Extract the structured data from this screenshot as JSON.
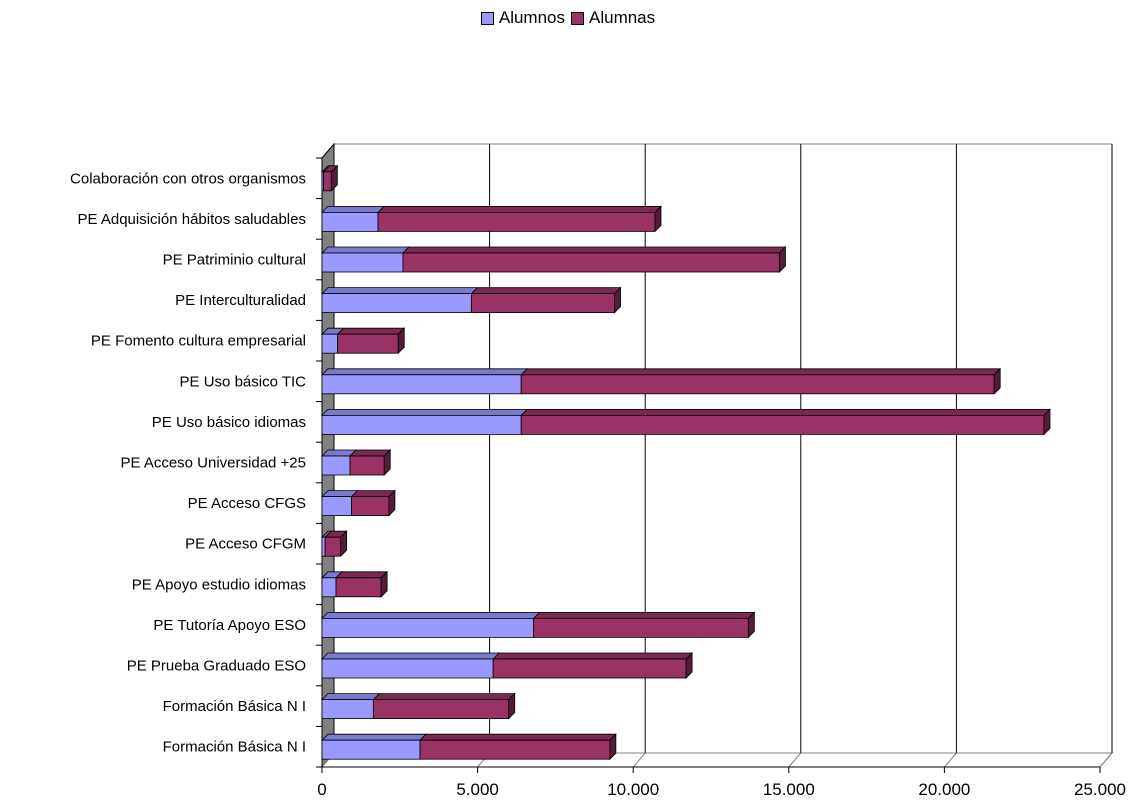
{
  "chart_data": {
    "type": "bar",
    "orientation": "horizontal",
    "stacked": true,
    "three_d": true,
    "legend_position": "top",
    "grid": true,
    "xlim": [
      0,
      25000
    ],
    "x_ticks": [
      "0",
      "5.000",
      "10.000",
      "15.000",
      "20.000",
      "25.000"
    ],
    "x_tick_values": [
      0,
      5000,
      10000,
      15000,
      20000,
      25000
    ],
    "categories": [
      "Colaboración con otros organismos",
      "PE Adquisición hábitos saludables",
      "PE Patriminio cultural",
      "PE Interculturalidad",
      "PE Fomento cultura empresarial",
      "PE Uso básico TIC",
      "PE Uso básico idiomas",
      "PE Acceso Universidad +25",
      "PE Acceso CFGS",
      "PE Acceso CFGM",
      "PE Apoyo estudio idiomas",
      "PE Tutoría Apoyo ESO",
      "PE Prueba Graduado ESO",
      "Formación Básica N I",
      "Formación Básica N I"
    ],
    "series": [
      {
        "name": "Alumnos",
        "color": "#9999ff",
        "values": [
          50,
          1800,
          2600,
          4800,
          500,
          6400,
          6400,
          900,
          950,
          100,
          450,
          6800,
          5500,
          1650,
          3150
        ]
      },
      {
        "name": "Alumnas",
        "color": "#993366",
        "values": [
          250,
          8900,
          12100,
          4600,
          1950,
          15200,
          16800,
          1100,
          1200,
          500,
          1450,
          6900,
          6200,
          4350,
          6100
        ]
      }
    ]
  }
}
